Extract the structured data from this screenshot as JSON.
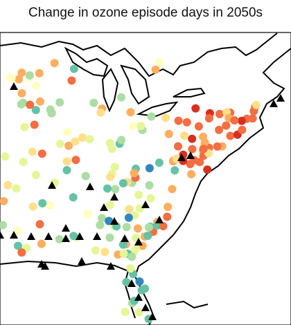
{
  "header": {
    "title": "Change in ozone episode days in 2050s"
  }
}
